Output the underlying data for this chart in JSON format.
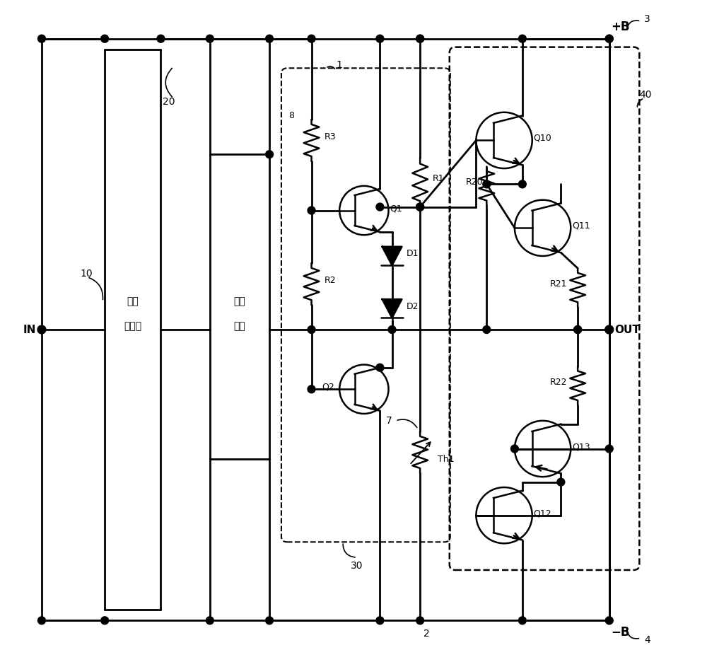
{
  "figsize": [
    10.0,
    9.36
  ],
  "dpi": 100,
  "labels": {
    "IN": "IN",
    "OUT": "OUT",
    "plus_B": "+B",
    "minus_B": "−B",
    "num_1": "1",
    "num_2": "2",
    "num_3": "3",
    "num_4": "4",
    "num_7": "7",
    "num_8": "8",
    "num_10": "10",
    "num_20": "20",
    "num_30": "30",
    "num_40": "40",
    "R1": "R1",
    "R2": "R2",
    "R3": "R3",
    "R20": "R20",
    "R21": "R21",
    "R22": "R22",
    "Q1": "Q1",
    "Q2": "Q2",
    "Q10": "Q10",
    "Q11": "Q11",
    "Q12": "Q12",
    "Q13": "Q13",
    "D1": "D1",
    "D2": "D2",
    "Th1": "Th1",
    "box1_line1": "电压",
    "box1_line2": "放大级",
    "box2_line1": "偏置",
    "box2_line2": "电路"
  }
}
